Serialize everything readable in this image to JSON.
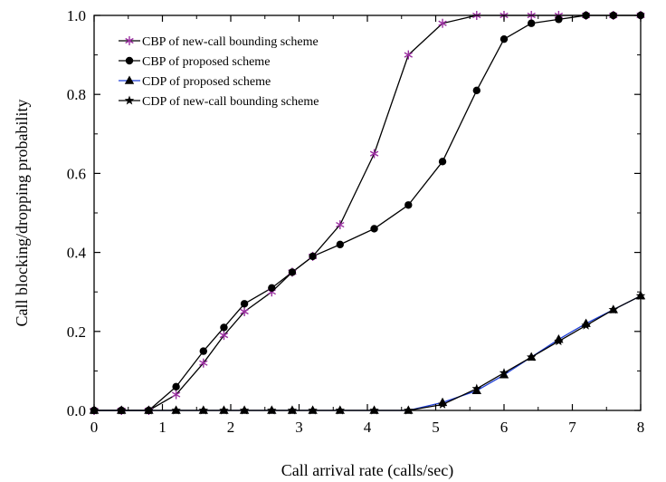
{
  "chart_data": {
    "type": "line",
    "title": "",
    "xlabel": "Call arrival rate (calls/sec)",
    "ylabel": "Call blocking/dropping probability",
    "xlim": [
      0,
      8
    ],
    "ylim": [
      0,
      1.0
    ],
    "x_ticks": [
      "0",
      "1",
      "2",
      "3",
      "4",
      "5",
      "6",
      "7",
      "8"
    ],
    "y_ticks": [
      "0.0",
      "0.2",
      "0.4",
      "0.6",
      "0.8",
      "1.0"
    ],
    "legend_position": "top-left",
    "grid": false,
    "series": [
      {
        "name": "CBP of new-call bounding scheme",
        "color": "#000000",
        "marker_color": "#9a2fa0",
        "marker": "asterisk",
        "x": [
          0.0,
          0.4,
          0.8,
          1.2,
          1.6,
          1.9,
          2.2,
          2.6,
          2.9,
          3.2,
          3.6,
          4.1,
          4.6,
          5.1,
          5.6,
          6.0,
          6.4,
          6.8,
          7.2,
          7.6,
          8.0
        ],
        "y": [
          0.0,
          0.0,
          0.0,
          0.04,
          0.12,
          0.19,
          0.25,
          0.3,
          0.35,
          0.39,
          0.47,
          0.65,
          0.9,
          0.98,
          1.0,
          1.0,
          1.0,
          1.0,
          1.0,
          1.0,
          1.0
        ]
      },
      {
        "name": "CBP of proposed scheme",
        "color": "#000000",
        "marker_color": "#000000",
        "marker": "circle",
        "x": [
          0.0,
          0.4,
          0.8,
          1.2,
          1.6,
          1.9,
          2.2,
          2.6,
          2.9,
          3.2,
          3.6,
          4.1,
          4.6,
          5.1,
          5.6,
          6.0,
          6.4,
          6.8,
          7.2,
          7.6,
          8.0
        ],
        "y": [
          0.0,
          0.0,
          0.0,
          0.06,
          0.15,
          0.21,
          0.27,
          0.31,
          0.35,
          0.39,
          0.42,
          0.46,
          0.52,
          0.63,
          0.81,
          0.94,
          0.98,
          0.99,
          1.0,
          1.0,
          1.0
        ]
      },
      {
        "name": "CDP of proposed scheme",
        "color": "#1f3fd6",
        "marker_color": "#000000",
        "marker": "triangle",
        "x": [
          0.0,
          0.4,
          0.8,
          1.2,
          1.6,
          1.9,
          2.2,
          2.6,
          2.9,
          3.2,
          3.6,
          4.1,
          4.6,
          5.1,
          5.6,
          6.0,
          6.4,
          6.8,
          7.2,
          7.6,
          8.0
        ],
        "y": [
          0.0,
          0.0,
          0.0,
          0.0,
          0.0,
          0.0,
          0.0,
          0.0,
          0.0,
          0.0,
          0.0,
          0.0,
          0.0,
          0.02,
          0.05,
          0.09,
          0.135,
          0.18,
          0.22,
          0.255,
          0.29
        ]
      },
      {
        "name": "CDP of new-call bounding scheme",
        "color": "#000000",
        "marker_color": "#000000",
        "marker": "star",
        "x": [
          0.0,
          0.4,
          0.8,
          1.2,
          1.6,
          1.9,
          2.2,
          2.6,
          2.9,
          3.2,
          3.6,
          4.1,
          4.6,
          5.1,
          5.6,
          6.0,
          6.4,
          6.8,
          7.2,
          7.6,
          8.0
        ],
        "y": [
          0.0,
          0.0,
          0.0,
          0.0,
          0.0,
          0.0,
          0.0,
          0.0,
          0.0,
          0.0,
          0.0,
          0.0,
          0.0,
          0.015,
          0.055,
          0.095,
          0.135,
          0.175,
          0.215,
          0.255,
          0.29
        ]
      }
    ]
  }
}
